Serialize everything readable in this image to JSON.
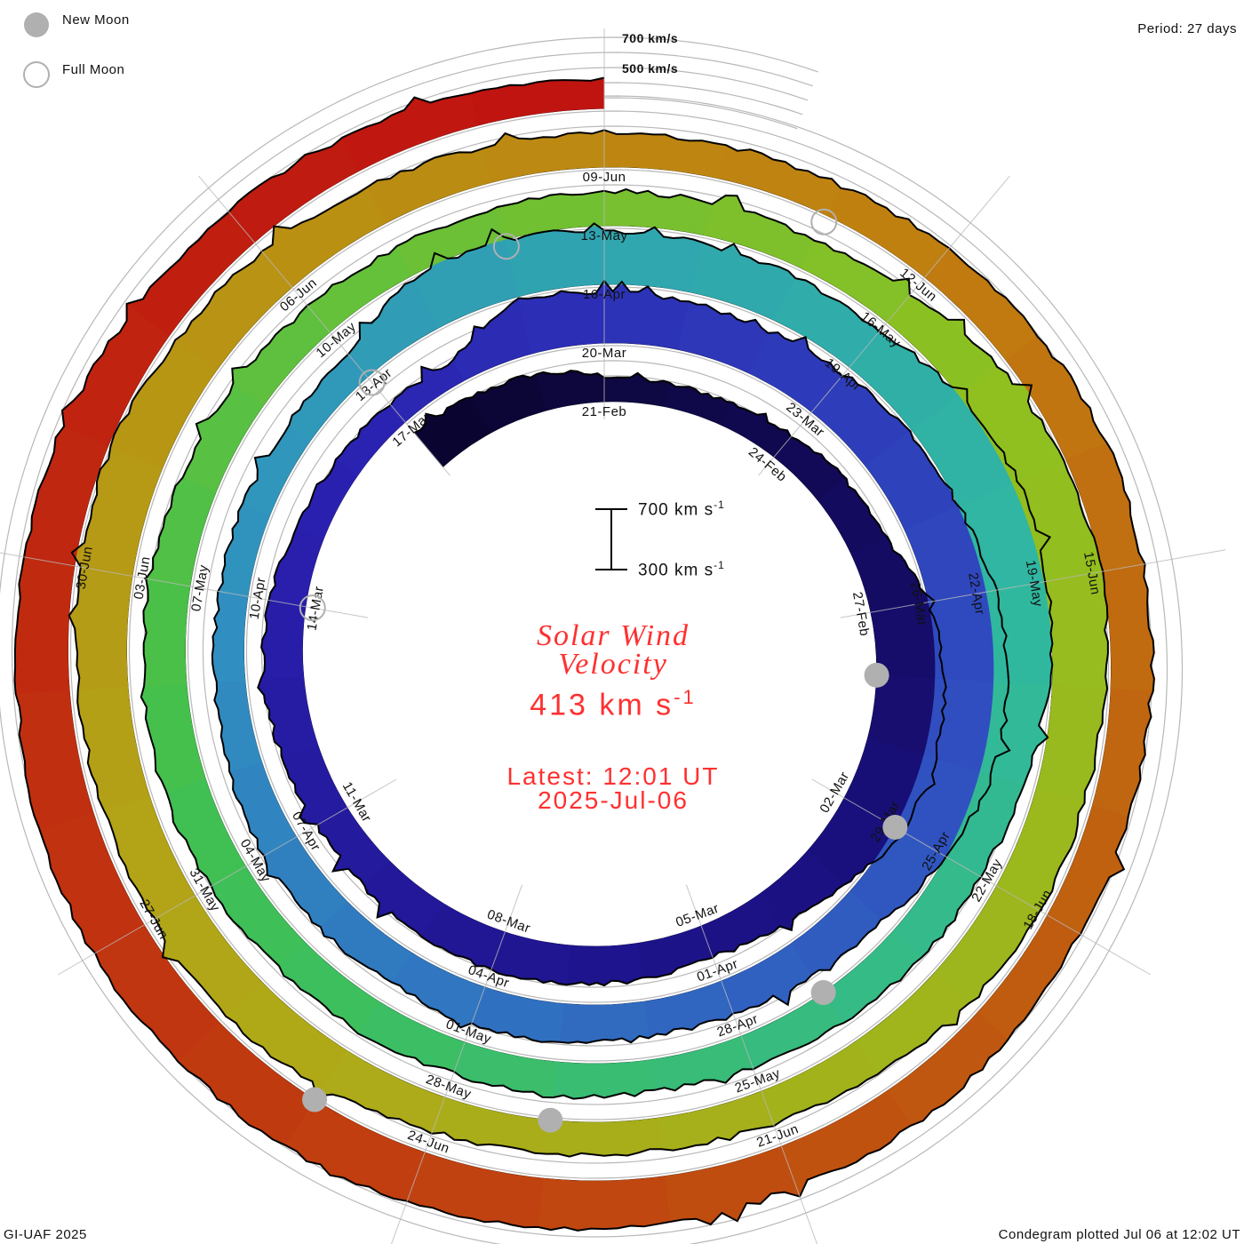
{
  "legend": {
    "new_moon": "New Moon",
    "full_moon": "Full Moon"
  },
  "period": "Period: 27 days",
  "footer": {
    "left": "GI-UAF 2025",
    "right": "Condegram plotted Jul 06 at 12:02 UT"
  },
  "center": {
    "title_line1": "Solar Wind",
    "title_line2": "Velocity",
    "current_value": "413 km s",
    "unit_exp": "-1",
    "latest_label": "Latest: 12:01 UT",
    "latest_date": "2025-Jul-06"
  },
  "scale_bar": {
    "top": "700 km s",
    "bottom": "300 km s",
    "exp": "-1"
  },
  "chart_data": {
    "type": "area",
    "layout": "spiral condegram",
    "title": "Solar Wind Velocity",
    "period_days": 27,
    "start_date": "2025-02-18",
    "end_date": "2025-07-06",
    "axis_labels": [
      "700 km/s",
      "500 km/s"
    ],
    "grid_levels_kms": [
      400,
      500,
      600,
      700
    ],
    "daily_speed_kms": [
      520,
      500,
      480,
      400,
      380,
      390,
      420,
      460,
      480,
      620,
      680,
      700,
      680,
      560,
      480,
      450,
      470,
      480,
      500,
      490,
      470,
      460,
      480,
      500,
      470,
      430,
      400,
      390,
      380,
      600,
      570,
      550,
      540,
      560,
      600,
      620,
      680,
      720,
      700,
      620,
      520,
      480,
      470,
      460,
      480,
      500,
      470,
      490,
      480,
      450,
      430,
      420,
      420,
      410,
      430,
      600,
      620,
      580,
      560,
      550,
      540,
      620,
      660,
      640,
      600,
      520,
      500,
      490,
      470,
      450,
      440,
      460,
      450,
      470,
      480,
      500,
      520,
      510,
      500,
      480,
      470,
      450,
      440,
      450,
      460,
      450,
      440,
      470,
      560,
      600,
      620,
      580,
      560,
      560,
      540,
      480,
      460,
      440,
      450,
      470,
      530,
      560,
      540,
      550,
      560,
      580,
      600,
      560,
      540,
      500,
      470,
      460,
      450,
      450,
      470,
      500,
      520,
      510,
      500,
      490,
      480,
      500,
      520,
      510,
      540,
      560,
      580,
      600,
      600,
      620,
      600,
      580,
      560,
      560,
      520,
      500,
      470,
      450,
      420
    ],
    "date_labels": [
      "21-Feb",
      "24-Feb",
      "27-Feb",
      "02-Mar",
      "05-Mar",
      "08-Mar",
      "11-Mar",
      "14-Mar",
      "17-Mar",
      "20-Mar",
      "23-Mar",
      "26-Mar",
      "29-Mar",
      "01-Apr",
      "04-Apr",
      "07-Apr",
      "10-Apr",
      "13-Apr",
      "16-Apr",
      "19-Apr",
      "22-Apr",
      "25-Apr",
      "28-Apr",
      "01-May",
      "04-May",
      "07-May",
      "10-May",
      "13-May",
      "16-May",
      "19-May",
      "22-May",
      "25-May",
      "28-May",
      "31-May",
      "03-Jun",
      "06-Jun",
      "09-Jun",
      "12-Jun",
      "15-Jun",
      "18-Jun",
      "21-Jun",
      "24-Jun",
      "27-Jun",
      "30-Jun"
    ],
    "new_moon_dates": [
      "2025-02-28",
      "2025-03-29",
      "2025-04-27",
      "2025-05-27",
      "2025-06-25"
    ],
    "full_moon_dates": [
      "2025-03-14",
      "2025-04-13",
      "2025-05-12",
      "2025-06-11"
    ],
    "colors": [
      "#0a0530",
      "#1a1080",
      "#2a20b0",
      "#3050c0",
      "#3090c0",
      "#30b8a0",
      "#40c050",
      "#90c020",
      "#b0a818",
      "#c08010",
      "#c04010",
      "#c01010"
    ]
  }
}
